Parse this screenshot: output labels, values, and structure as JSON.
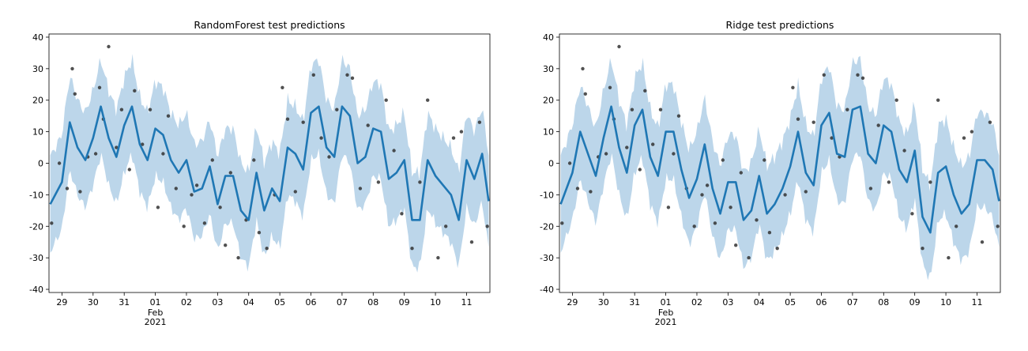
{
  "chart_data": [
    {
      "type": "line",
      "title": "RandomForest test predictions",
      "xlabel": "",
      "ylabel": "",
      "ylim": [
        -41,
        41
      ],
      "yticks": [
        -40,
        -30,
        -20,
        -10,
        0,
        10,
        20,
        30,
        40
      ],
      "xlim": [
        "2021-01-28 14:00",
        "2021-02-11 18:00"
      ],
      "xticks": [
        {
          "date": "2021-01-29",
          "label": "29",
          "sub": ""
        },
        {
          "date": "2021-01-30",
          "label": "30",
          "sub": ""
        },
        {
          "date": "2021-01-31",
          "label": "31",
          "sub": ""
        },
        {
          "date": "2021-02-01",
          "label": "01",
          "sub": "Feb\n2021"
        },
        {
          "date": "2021-02-02",
          "label": "02",
          "sub": ""
        },
        {
          "date": "2021-02-03",
          "label": "03",
          "sub": ""
        },
        {
          "date": "2021-02-04",
          "label": "04",
          "sub": ""
        },
        {
          "date": "2021-02-05",
          "label": "05",
          "sub": ""
        },
        {
          "date": "2021-02-06",
          "label": "06",
          "sub": ""
        },
        {
          "date": "2021-02-07",
          "label": "07",
          "sub": ""
        },
        {
          "date": "2021-02-08",
          "label": "08",
          "sub": ""
        },
        {
          "date": "2021-02-09",
          "label": "09",
          "sub": ""
        },
        {
          "date": "2021-02-10",
          "label": "10",
          "sub": ""
        },
        {
          "date": "2021-02-11",
          "label": "11",
          "sub": ""
        }
      ],
      "grid": false,
      "band_halfwidth": 15,
      "colors": {
        "line": "#1f77b4",
        "band": "#bcd6ea",
        "points": "#333333"
      },
      "series": [
        {
          "kind": "prediction",
          "x": [
            "2021-01-28 15:00",
            "2021-01-29 00:00",
            "2021-01-29 06:00",
            "2021-01-29 12:00",
            "2021-01-29 18:00",
            "2021-01-30 00:00",
            "2021-01-30 06:00",
            "2021-01-30 12:00",
            "2021-01-30 18:00",
            "2021-01-31 00:00",
            "2021-01-31 06:00",
            "2021-01-31 12:00",
            "2021-01-31 18:00",
            "2021-02-01 00:00",
            "2021-02-01 06:00",
            "2021-02-01 12:00",
            "2021-02-01 18:00",
            "2021-02-02 00:00",
            "2021-02-02 06:00",
            "2021-02-02 12:00",
            "2021-02-02 18:00",
            "2021-02-03 00:00",
            "2021-02-03 06:00",
            "2021-02-03 12:00",
            "2021-02-03 18:00",
            "2021-02-04 00:00",
            "2021-02-04 06:00",
            "2021-02-04 12:00",
            "2021-02-04 18:00",
            "2021-02-05 00:00",
            "2021-02-05 06:00",
            "2021-02-05 12:00",
            "2021-02-05 18:00",
            "2021-02-06 00:00",
            "2021-02-06 06:00",
            "2021-02-06 12:00",
            "2021-02-06 18:00",
            "2021-02-07 00:00",
            "2021-02-07 06:00",
            "2021-02-07 12:00",
            "2021-02-07 18:00",
            "2021-02-08 00:00",
            "2021-02-08 06:00",
            "2021-02-08 12:00",
            "2021-02-08 18:00",
            "2021-02-09 00:00",
            "2021-02-09 06:00",
            "2021-02-09 12:00",
            "2021-02-09 18:00",
            "2021-02-10 00:00",
            "2021-02-10 06:00",
            "2021-02-10 12:00",
            "2021-02-10 18:00",
            "2021-02-11 00:00",
            "2021-02-11 06:00",
            "2021-02-11 12:00",
            "2021-02-11 17:00"
          ],
          "y": [
            -13,
            -6,
            13,
            5,
            1,
            8,
            18,
            8,
            2,
            12,
            18,
            6,
            1,
            11,
            9,
            1,
            -3,
            1,
            -9,
            -8,
            -1,
            -13,
            -4,
            -4,
            -15,
            -18,
            -3,
            -15,
            -8,
            -12,
            5,
            3,
            -2,
            16,
            18,
            5,
            2,
            18,
            15,
            0,
            2,
            11,
            10,
            -5,
            -3,
            1,
            -18,
            -18,
            1,
            -4,
            -7,
            -10,
            -18,
            1,
            -5,
            3,
            -12
          ]
        },
        {
          "kind": "observed",
          "x": [
            "2021-01-28 16:00",
            "2021-01-28 22:00",
            "2021-01-29 04:00",
            "2021-01-29 08:00",
            "2021-01-29 10:00",
            "2021-01-29 14:00",
            "2021-01-29 20:00",
            "2021-01-30 02:00",
            "2021-01-30 05:00",
            "2021-01-30 08:00",
            "2021-01-30 12:00",
            "2021-01-30 18:00",
            "2021-01-30 22:00",
            "2021-01-31 04:00",
            "2021-01-31 08:00",
            "2021-01-31 14:00",
            "2021-01-31 20:00",
            "2021-02-01 02:00",
            "2021-02-01 06:00",
            "2021-02-01 10:00",
            "2021-02-01 16:00",
            "2021-02-01 22:00",
            "2021-02-02 04:00",
            "2021-02-02 08:00",
            "2021-02-02 14:00",
            "2021-02-02 20:00",
            "2021-02-03 02:00",
            "2021-02-03 06:00",
            "2021-02-03 10:00",
            "2021-02-03 16:00",
            "2021-02-03 22:00",
            "2021-02-04 04:00",
            "2021-02-04 08:00",
            "2021-02-04 14:00",
            "2021-02-04 20:00",
            "2021-02-05 02:00",
            "2021-02-05 06:00",
            "2021-02-05 12:00",
            "2021-02-05 18:00",
            "2021-02-06 02:00",
            "2021-02-06 08:00",
            "2021-02-06 14:00",
            "2021-02-06 20:00",
            "2021-02-07 04:00",
            "2021-02-07 08:00",
            "2021-02-07 14:00",
            "2021-02-07 20:00",
            "2021-02-08 04:00",
            "2021-02-08 10:00",
            "2021-02-08 16:00",
            "2021-02-08 22:00",
            "2021-02-09 06:00",
            "2021-02-09 12:00",
            "2021-02-09 18:00",
            "2021-02-10 02:00",
            "2021-02-10 08:00",
            "2021-02-10 14:00",
            "2021-02-10 20:00",
            "2021-02-11 04:00",
            "2021-02-11 10:00",
            "2021-02-11 16:00"
          ],
          "y": [
            -19,
            0,
            -8,
            30,
            22,
            -9,
            2,
            3,
            24,
            14,
            37,
            5,
            17,
            -2,
            23,
            6,
            17,
            -14,
            3,
            15,
            -8,
            -20,
            -10,
            -7,
            -19,
            1,
            -14,
            -26,
            -3,
            -30,
            -18,
            1,
            -22,
            -27,
            -10,
            24,
            14,
            -9,
            13,
            28,
            8,
            2,
            17,
            28,
            27,
            -8,
            12,
            -6,
            20,
            4,
            -16,
            -27,
            -6,
            20,
            -30,
            -20,
            8,
            10,
            -25,
            13,
            -20
          ]
        }
      ]
    },
    {
      "type": "line",
      "title": "Ridge test predictions",
      "xlabel": "",
      "ylabel": "",
      "ylim": [
        -41,
        41
      ],
      "yticks": [
        -40,
        -30,
        -20,
        -10,
        0,
        10,
        20,
        30,
        40
      ],
      "xlim": [
        "2021-01-28 14:00",
        "2021-02-11 18:00"
      ],
      "xticks": [
        {
          "date": "2021-01-29",
          "label": "29",
          "sub": ""
        },
        {
          "date": "2021-01-30",
          "label": "30",
          "sub": ""
        },
        {
          "date": "2021-01-31",
          "label": "31",
          "sub": ""
        },
        {
          "date": "2021-02-01",
          "label": "01",
          "sub": "Feb\n2021"
        },
        {
          "date": "2021-02-02",
          "label": "02",
          "sub": ""
        },
        {
          "date": "2021-02-03",
          "label": "03",
          "sub": ""
        },
        {
          "date": "2021-02-04",
          "label": "04",
          "sub": ""
        },
        {
          "date": "2021-02-05",
          "label": "05",
          "sub": ""
        },
        {
          "date": "2021-02-06",
          "label": "06",
          "sub": ""
        },
        {
          "date": "2021-02-07",
          "label": "07",
          "sub": ""
        },
        {
          "date": "2021-02-08",
          "label": "08",
          "sub": ""
        },
        {
          "date": "2021-02-09",
          "label": "09",
          "sub": ""
        },
        {
          "date": "2021-02-10",
          "label": "10",
          "sub": ""
        },
        {
          "date": "2021-02-11",
          "label": "11",
          "sub": ""
        }
      ],
      "grid": false,
      "band_halfwidth": 15,
      "colors": {
        "line": "#1f77b4",
        "band": "#bcd6ea",
        "points": "#333333"
      },
      "series": [
        {
          "kind": "prediction",
          "x": [
            "2021-01-28 15:00",
            "2021-01-29 00:00",
            "2021-01-29 06:00",
            "2021-01-29 12:00",
            "2021-01-29 18:00",
            "2021-01-30 00:00",
            "2021-01-30 06:00",
            "2021-01-30 12:00",
            "2021-01-30 18:00",
            "2021-01-31 00:00",
            "2021-01-31 06:00",
            "2021-01-31 12:00",
            "2021-01-31 18:00",
            "2021-02-01 00:00",
            "2021-02-01 06:00",
            "2021-02-01 12:00",
            "2021-02-01 18:00",
            "2021-02-02 00:00",
            "2021-02-02 06:00",
            "2021-02-02 12:00",
            "2021-02-02 18:00",
            "2021-02-03 00:00",
            "2021-02-03 06:00",
            "2021-02-03 12:00",
            "2021-02-03 18:00",
            "2021-02-04 00:00",
            "2021-02-04 06:00",
            "2021-02-04 12:00",
            "2021-02-04 18:00",
            "2021-02-05 00:00",
            "2021-02-05 06:00",
            "2021-02-05 12:00",
            "2021-02-05 18:00",
            "2021-02-06 00:00",
            "2021-02-06 06:00",
            "2021-02-06 12:00",
            "2021-02-06 18:00",
            "2021-02-07 00:00",
            "2021-02-07 06:00",
            "2021-02-07 12:00",
            "2021-02-07 18:00",
            "2021-02-08 00:00",
            "2021-02-08 06:00",
            "2021-02-08 12:00",
            "2021-02-08 18:00",
            "2021-02-09 00:00",
            "2021-02-09 06:00",
            "2021-02-09 12:00",
            "2021-02-09 18:00",
            "2021-02-10 00:00",
            "2021-02-10 06:00",
            "2021-02-10 12:00",
            "2021-02-10 18:00",
            "2021-02-11 00:00",
            "2021-02-11 06:00",
            "2021-02-11 12:00",
            "2021-02-11 17:00"
          ],
          "y": [
            -13,
            -3,
            10,
            3,
            -4,
            8,
            18,
            5,
            -3,
            12,
            17,
            2,
            -4,
            10,
            10,
            -2,
            -11,
            -5,
            6,
            -8,
            -16,
            -6,
            -6,
            -18,
            -15,
            -4,
            -16,
            -13,
            -8,
            -1,
            10,
            -3,
            -7,
            12,
            16,
            3,
            2,
            17,
            18,
            3,
            0,
            12,
            10,
            -2,
            -6,
            4,
            -17,
            -22,
            -3,
            -1,
            -10,
            -16,
            -13,
            1,
            1,
            -2,
            -12
          ]
        },
        {
          "kind": "observed",
          "x": [
            "2021-01-28 16:00",
            "2021-01-28 22:00",
            "2021-01-29 04:00",
            "2021-01-29 08:00",
            "2021-01-29 10:00",
            "2021-01-29 14:00",
            "2021-01-29 20:00",
            "2021-01-30 02:00",
            "2021-01-30 05:00",
            "2021-01-30 08:00",
            "2021-01-30 12:00",
            "2021-01-30 18:00",
            "2021-01-30 22:00",
            "2021-01-31 04:00",
            "2021-01-31 08:00",
            "2021-01-31 14:00",
            "2021-01-31 20:00",
            "2021-02-01 02:00",
            "2021-02-01 06:00",
            "2021-02-01 10:00",
            "2021-02-01 16:00",
            "2021-02-01 22:00",
            "2021-02-02 04:00",
            "2021-02-02 08:00",
            "2021-02-02 14:00",
            "2021-02-02 20:00",
            "2021-02-03 02:00",
            "2021-02-03 06:00",
            "2021-02-03 10:00",
            "2021-02-03 16:00",
            "2021-02-03 22:00",
            "2021-02-04 04:00",
            "2021-02-04 08:00",
            "2021-02-04 14:00",
            "2021-02-04 20:00",
            "2021-02-05 02:00",
            "2021-02-05 06:00",
            "2021-02-05 12:00",
            "2021-02-05 18:00",
            "2021-02-06 02:00",
            "2021-02-06 08:00",
            "2021-02-06 14:00",
            "2021-02-06 20:00",
            "2021-02-07 04:00",
            "2021-02-07 08:00",
            "2021-02-07 14:00",
            "2021-02-07 20:00",
            "2021-02-08 04:00",
            "2021-02-08 10:00",
            "2021-02-08 16:00",
            "2021-02-08 22:00",
            "2021-02-09 06:00",
            "2021-02-09 12:00",
            "2021-02-09 18:00",
            "2021-02-10 02:00",
            "2021-02-10 08:00",
            "2021-02-10 14:00",
            "2021-02-10 20:00",
            "2021-02-11 04:00",
            "2021-02-11 10:00",
            "2021-02-11 16:00"
          ],
          "y": [
            -19,
            0,
            -8,
            30,
            22,
            -9,
            2,
            3,
            24,
            14,
            37,
            5,
            17,
            -2,
            23,
            6,
            17,
            -14,
            3,
            15,
            -8,
            -20,
            -10,
            -7,
            -19,
            1,
            -14,
            -26,
            -3,
            -30,
            -18,
            1,
            -22,
            -27,
            -10,
            24,
            14,
            -9,
            13,
            28,
            8,
            2,
            17,
            28,
            27,
            -8,
            12,
            -6,
            20,
            4,
            -16,
            -27,
            -6,
            20,
            -30,
            -20,
            8,
            10,
            -25,
            13,
            -20
          ]
        }
      ]
    }
  ]
}
